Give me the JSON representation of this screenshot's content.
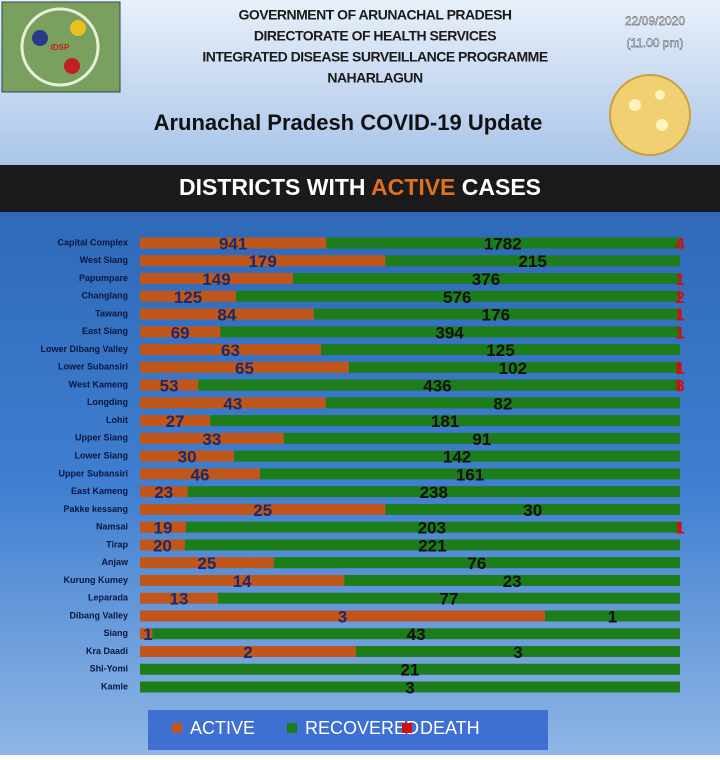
{
  "header": {
    "lines": [
      "GOVERNMENT OF ARUNACHAL PRADESH",
      "DIRECTORATE OF HEALTH SERVICES",
      "INTEGRATED DISEASE SURVEILLANCE PROGRAMME",
      "NAHARLAGUN"
    ],
    "update_title": "Arunachal Pradesh COVID-19 Update",
    "date": "22/09/2020",
    "time": "(11.00 pm)",
    "logo": "IDSP"
  },
  "chart_data": {
    "type": "bar",
    "orientation": "horizontal",
    "stacking": "percent",
    "title_parts": [
      "DISTRICTS WITH",
      "ACTIVE",
      "CASES"
    ],
    "categories": [
      "Capital Complex",
      "West Siang",
      "Papumpare",
      "Changlang",
      "Tawang",
      "East Siang",
      "Lower Dibang Valley",
      "Lower Subansiri",
      "West Kameng",
      "Longding",
      "Lohit",
      "Upper Siang",
      "Lower Siang",
      "Upper Subansiri",
      "East Kameng",
      "Pakke kessang",
      "Namsai",
      "Tirap",
      "Anjaw",
      "Kurung Kumey",
      "Leparada",
      "Dibang Valley",
      "Siang",
      "Kra Daadi",
      "Shi-Yomi",
      "Kamle"
    ],
    "series": [
      {
        "name": "ACTIVE",
        "color": "#c0561a",
        "values": [
          941,
          179,
          149,
          125,
          84,
          69,
          63,
          65,
          53,
          43,
          27,
          33,
          30,
          46,
          23,
          25,
          19,
          20,
          25,
          14,
          13,
          3,
          1,
          2,
          null,
          null
        ]
      },
      {
        "name": "RECOVERED",
        "color": "#1d7d1a",
        "values": [
          1782,
          215,
          376,
          576,
          176,
          394,
          125,
          102,
          436,
          82,
          181,
          91,
          142,
          161,
          238,
          30,
          203,
          221,
          76,
          23,
          77,
          1,
          43,
          3,
          21,
          3
        ]
      },
      {
        "name": "DEATH",
        "color": "#d01010",
        "values": [
          4,
          null,
          1,
          2,
          1,
          1,
          null,
          1,
          3,
          null,
          null,
          null,
          null,
          null,
          null,
          null,
          1,
          null,
          null,
          null,
          null,
          null,
          null,
          null,
          null,
          null
        ]
      }
    ],
    "legend": "bottom"
  }
}
